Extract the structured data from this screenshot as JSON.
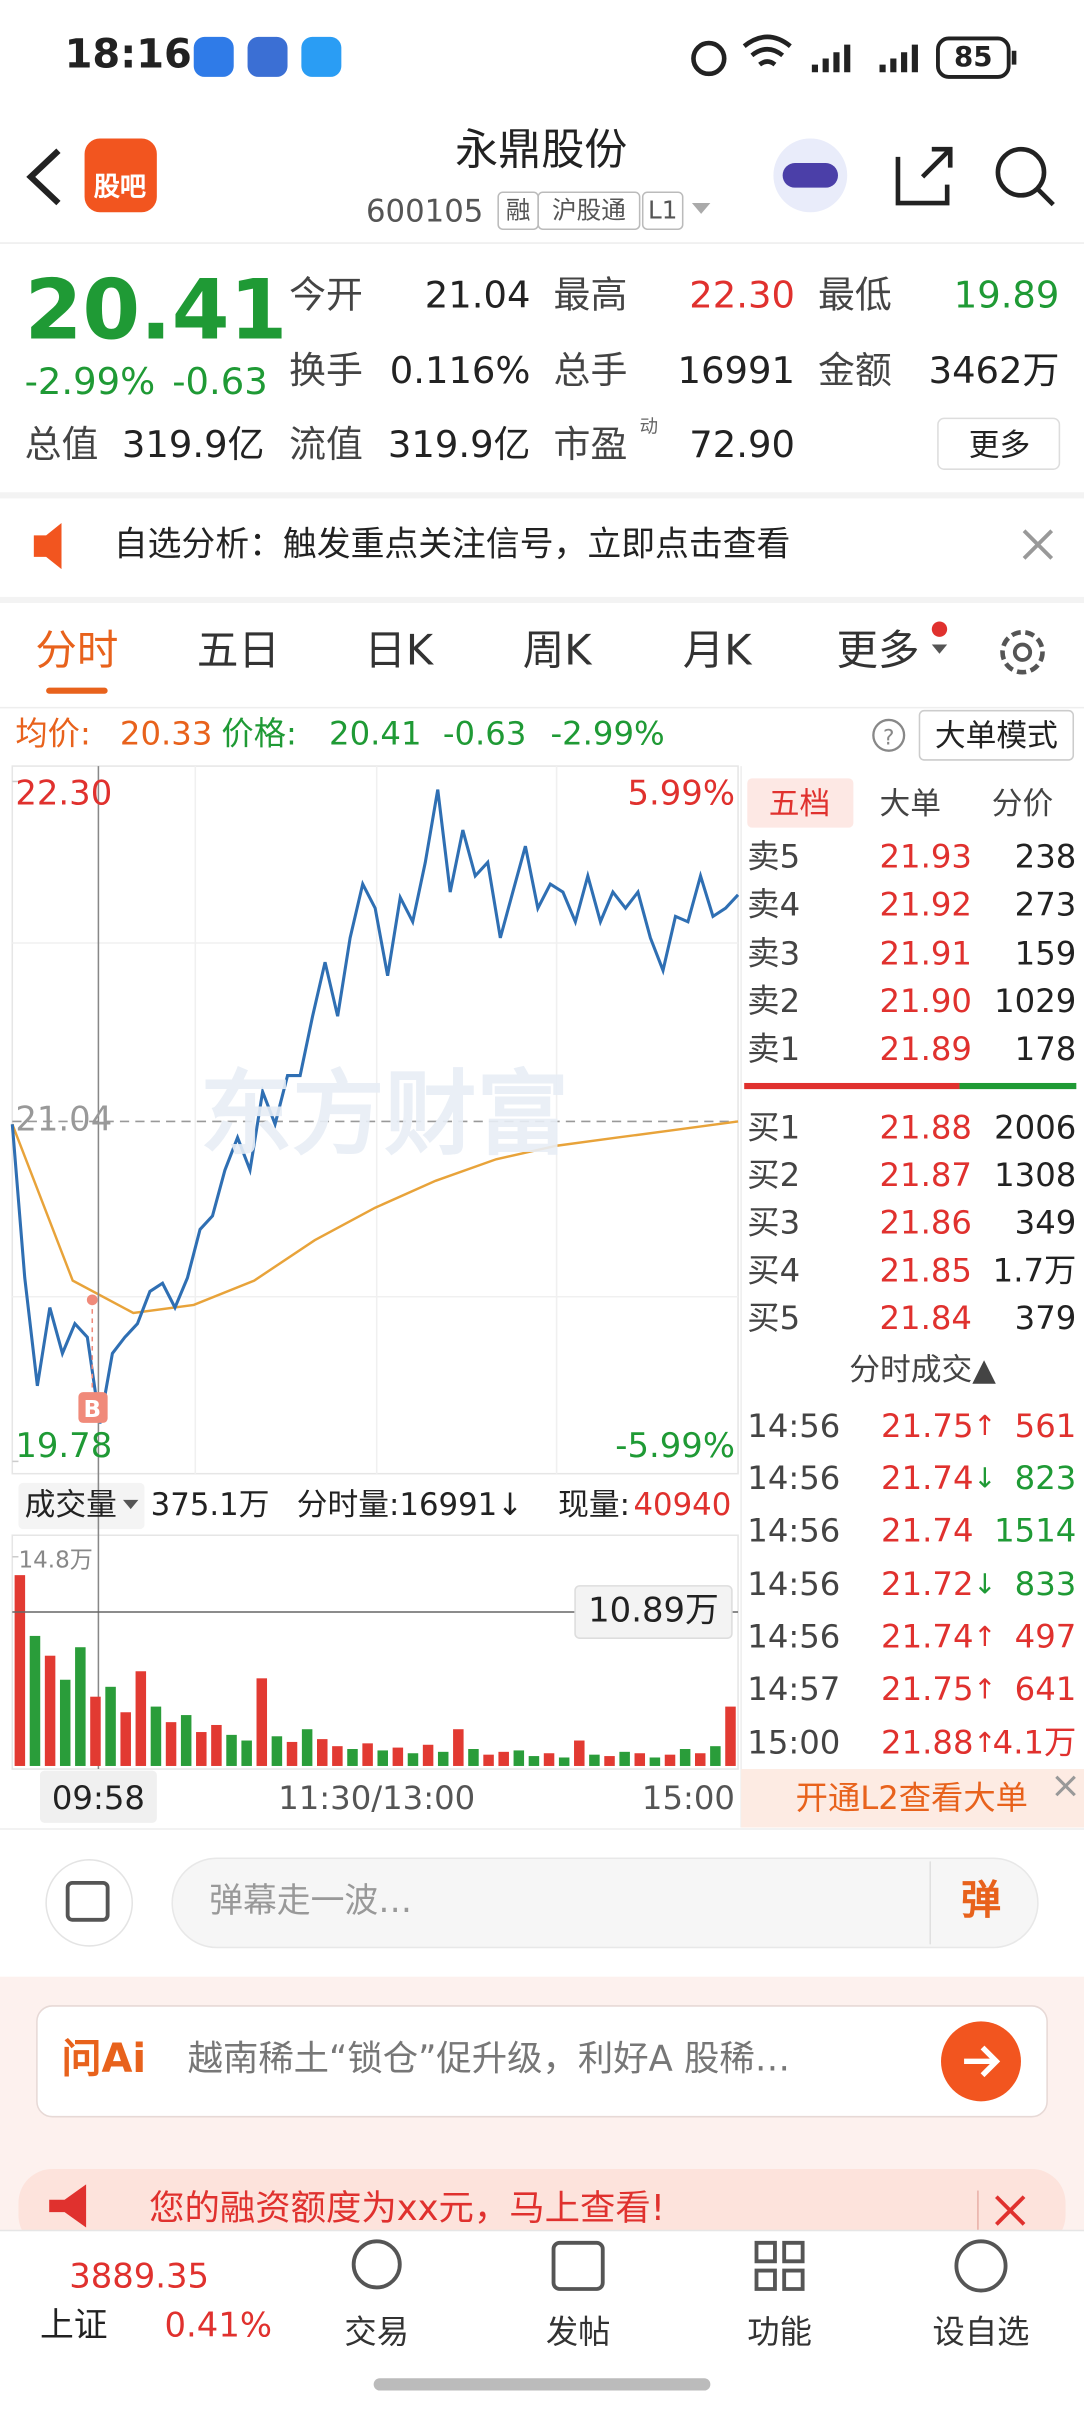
{
  "status_bar": {
    "time": "18:16",
    "battery": "85"
  },
  "header": {
    "badge": "股吧",
    "name": "永鼎股份",
    "code": "600105",
    "tags": [
      "融",
      "沪股通",
      "L1"
    ]
  },
  "quote": {
    "price": "20.41",
    "change_pct": "-2.99%",
    "change": "-0.63",
    "fields": [
      {
        "label": "今开",
        "value": "21.04"
      },
      {
        "label": "最高",
        "value": "22.30"
      },
      {
        "label": "最低",
        "value": "19.89"
      },
      {
        "label": "换手",
        "value": "0.116%"
      },
      {
        "label": "总手",
        "value": "16991"
      },
      {
        "label": "金额",
        "value": "3462万"
      },
      {
        "label": "总值",
        "value": "319.9亿"
      },
      {
        "label": "流值",
        "value": "319.9亿"
      },
      {
        "label": "市盈",
        "value": "72.90"
      }
    ],
    "pe_sup": "动",
    "more": "更多"
  },
  "notice": {
    "text": "自选分析：触发重点关注信号，立即点击查看"
  },
  "tabs": [
    "分时",
    "五日",
    "日K",
    "周K",
    "月K",
    "更多"
  ],
  "legend": {
    "avg_label": "均价:",
    "avg": "20.33",
    "price_label": "价格:",
    "price": "20.41",
    "change": "-0.63",
    "pct": "-2.99%",
    "mode": "大单模式"
  },
  "intraday": {
    "watermark": "东方财富",
    "ylim": [
      19.78,
      22.3
    ],
    "yticks": [
      {
        "value": 22.3,
        "label": "22.30"
      },
      {
        "value": 21.04,
        "label": "21.04"
      },
      {
        "value": 19.78,
        "label": "19.78"
      }
    ],
    "pct_labels": [
      "5.99%",
      "-5.99%"
    ],
    "buy_marker": "B",
    "price": [
      21.03,
      20.46,
      20.06,
      20.35,
      20.18,
      20.29,
      20.24,
      19.92,
      20.18,
      20.24,
      20.29,
      20.41,
      20.44,
      20.35,
      20.46,
      20.64,
      20.69,
      20.86,
      20.98,
      20.86,
      21.15,
      21.03,
      21.21,
      21.21,
      21.43,
      21.63,
      21.43,
      21.72,
      21.92,
      21.83,
      21.58,
      21.87,
      21.78,
      22.0,
      22.27,
      21.89,
      22.12,
      21.95,
      22.0,
      21.72,
      21.89,
      22.06,
      21.83,
      21.92,
      21.89,
      21.78,
      21.95,
      21.78,
      21.89,
      21.83,
      21.89,
      21.72,
      21.6,
      21.8,
      21.78,
      21.95,
      21.8,
      21.83,
      21.88
    ],
    "price_color": "#2f6fb3",
    "avg": [
      21.03,
      20.45,
      20.33,
      20.36,
      20.45,
      20.6,
      20.72,
      20.82,
      20.9,
      20.95,
      20.98,
      21.01,
      21.04
    ],
    "avg_color": "#e8a33a"
  },
  "volume_bar": {
    "label": "成交量",
    "total": "375.1万",
    "minute": "分时量:16991↓",
    "now_label": "现量:",
    "now": "40940"
  },
  "volume": {
    "ylim": [
      0,
      14.8
    ],
    "ytick": {
      "value": 14.8,
      "label": "14.8万"
    },
    "cursor": {
      "value": 10.89,
      "label": "10.89万"
    },
    "values": [
      13.5,
      9.2,
      7.8,
      6.1,
      8.4,
      4.9,
      5.6,
      3.8,
      6.7,
      4.2,
      3.1,
      3.6,
      2.4,
      2.9,
      2.2,
      1.8,
      6.2,
      2.1,
      1.7,
      2.6,
      1.9,
      1.4,
      1.2,
      1.6,
      1.1,
      1.3,
      0.9,
      1.5,
      1.0,
      2.6,
      1.2,
      0.8,
      1.0,
      1.1,
      0.7,
      0.9,
      0.6,
      1.8,
      0.8,
      0.7,
      1.0,
      0.9,
      0.6,
      0.8,
      1.2,
      0.9,
      1.4,
      4.2
    ],
    "colors": [
      "#e23a32",
      "#2a9d3a",
      "#e23a32",
      "#2a9d3a",
      "#2a9d3a",
      "#e23a32",
      "#2a9d3a",
      "#e23a32",
      "#e23a32",
      "#2a9d3a",
      "#e23a32",
      "#2a9d3a",
      "#e23a32",
      "#e23a32",
      "#2a9d3a",
      "#2a9d3a",
      "#e23a32",
      "#2a9d3a",
      "#e23a32",
      "#2a9d3a",
      "#e23a32",
      "#e23a32",
      "#2a9d3a",
      "#e23a32",
      "#2a9d3a",
      "#e23a32",
      "#2a9d3a",
      "#e23a32",
      "#2a9d3a",
      "#e23a32",
      "#2a9d3a",
      "#e23a32",
      "#e23a32",
      "#2a9d3a",
      "#2a9d3a",
      "#e23a32",
      "#2a9d3a",
      "#e23a32",
      "#2a9d3a",
      "#e23a32",
      "#2a9d3a",
      "#e23a32",
      "#2a9d3a",
      "#e23a32",
      "#2a9d3a",
      "#e23a32",
      "#2a9d3a",
      "#e23a32"
    ]
  },
  "time_axis": {
    "cursor": "09:58",
    "mid": "11:30/13:00",
    "end": "15:00"
  },
  "order_book": {
    "tabs": [
      "五档",
      "大单",
      "分价"
    ],
    "asks": [
      {
        "label": "卖5",
        "price": "21.93",
        "vol": "238"
      },
      {
        "label": "卖4",
        "price": "21.92",
        "vol": "273"
      },
      {
        "label": "卖3",
        "price": "21.91",
        "vol": "159"
      },
      {
        "label": "卖2",
        "price": "21.90",
        "vol": "1029"
      },
      {
        "label": "卖1",
        "price": "21.89",
        "vol": "178"
      }
    ],
    "bids": [
      {
        "label": "买1",
        "price": "21.88",
        "vol": "2006"
      },
      {
        "label": "买2",
        "price": "21.87",
        "vol": "1308"
      },
      {
        "label": "买3",
        "price": "21.86",
        "vol": "349"
      },
      {
        "label": "买4",
        "price": "21.85",
        "vol": "1.7万"
      },
      {
        "label": "买5",
        "price": "21.84",
        "vol": "379"
      }
    ]
  },
  "trades": {
    "title": "分时成交▲",
    "rows": [
      {
        "time": "14:56",
        "price": "21.75",
        "arrow": "↑",
        "vol": "561",
        "color": "#e0312e"
      },
      {
        "time": "14:56",
        "price": "21.74",
        "arrow": "↓",
        "vol": "823",
        "color": "#1f9a35"
      },
      {
        "time": "14:56",
        "price": "21.74",
        "vol": "1514",
        "color": "#1f9a35"
      },
      {
        "time": "14:56",
        "price": "21.72",
        "arrow": "↓",
        "vol": "833",
        "color": "#1f9a35"
      },
      {
        "time": "14:56",
        "price": "21.74",
        "arrow": "↑",
        "vol": "497",
        "color": "#e0312e"
      },
      {
        "time": "14:57",
        "price": "21.75",
        "arrow": "↑",
        "vol": "641",
        "color": "#e0312e"
      },
      {
        "time": "15:00",
        "price": "21.88",
        "arrow": "↑",
        "vol": "4.1万",
        "color": "#e0312e"
      }
    ],
    "l2": "开通L2查看大单"
  },
  "comment": {
    "placeholder": "弹幕走一波…",
    "button": "弹"
  },
  "ai": {
    "label": "问Ai",
    "text": "越南稀土“锁仓”促升级，利好A 股稀…"
  },
  "promo": {
    "text": "您的融资额度为xx元，马上查看!"
  },
  "nav": {
    "index_value": "3889.35",
    "index_name": "上证",
    "index_pct": "0.41%",
    "items": [
      "交易",
      "发帖",
      "功能",
      "设自选"
    ]
  }
}
